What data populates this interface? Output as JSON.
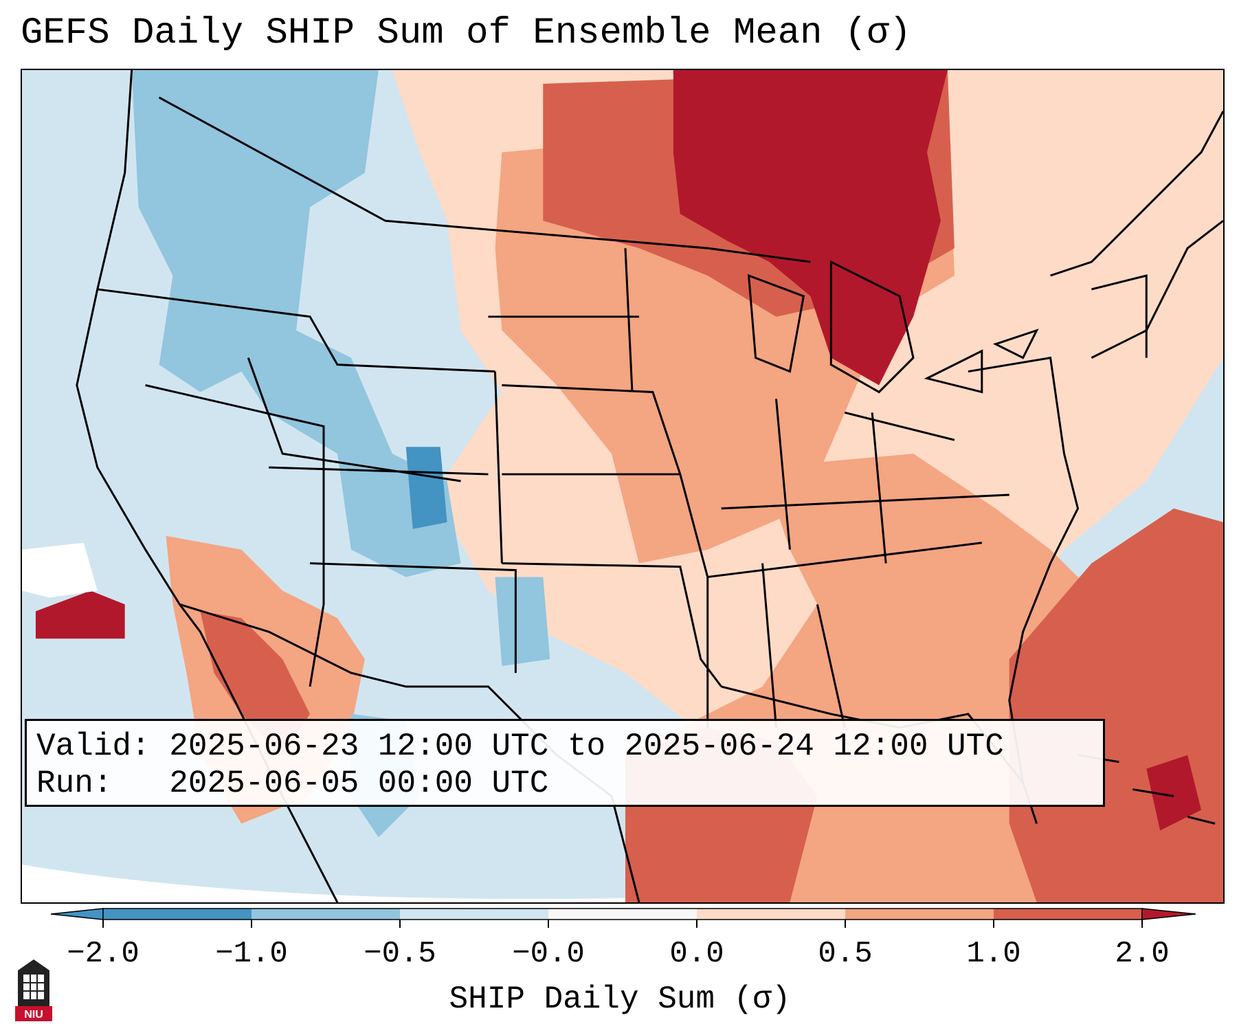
{
  "title": "GEFS Daily SHIP Sum of Ensemble Mean (σ)",
  "info": {
    "valid_label": "Valid:",
    "valid_value": "2025-06-23 12:00 UTC to 2025-06-24 12:00 UTC",
    "run_label": "Run:",
    "run_value": "2025-06-05 00:00 UTC"
  },
  "colorbar": {
    "label": "SHIP Daily Sum (σ)",
    "ticks": [
      "−2.0",
      "−1.0",
      "−0.5",
      "−0.0",
      "0.0",
      "0.5",
      "1.0",
      "2.0"
    ],
    "colors": [
      "#4393c3",
      "#92c5de",
      "#d1e5f0",
      "#f7f7f7",
      "#fddbc7",
      "#f4a582",
      "#d6604d",
      "#b2182b"
    ]
  },
  "logo": {
    "text": "NIU"
  },
  "map": {
    "region": "Continental United States",
    "ocean_color": "#d1e5f0",
    "land_anomaly": "positive east and gulf, negative west"
  }
}
